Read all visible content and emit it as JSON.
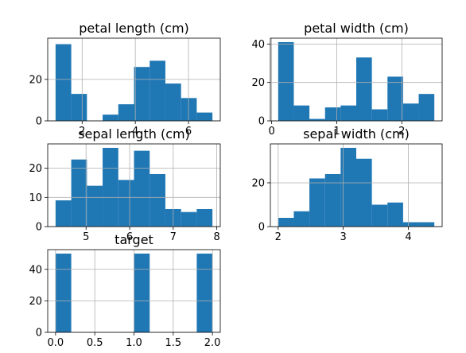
{
  "bar_color": "#1f77b4",
  "grid_color": "#b0b0b0",
  "chart_data": [
    {
      "type": "bar",
      "title": "petal length (cm)",
      "xlim": [
        0.705,
        7.195
      ],
      "ylim": [
        0,
        39.9
      ],
      "grid": true,
      "bins": [
        [
          1.0,
          1.59,
          37
        ],
        [
          1.59,
          2.18,
          13
        ],
        [
          2.18,
          2.77,
          0
        ],
        [
          2.77,
          3.36,
          3
        ],
        [
          3.36,
          3.95,
          8
        ],
        [
          3.95,
          4.54,
          26
        ],
        [
          4.54,
          5.13,
          29
        ],
        [
          5.13,
          5.72,
          18
        ],
        [
          5.72,
          6.31,
          11
        ],
        [
          6.31,
          6.9,
          4
        ]
      ],
      "xticks": [
        {
          "value": 2,
          "label": "2"
        },
        {
          "value": 4,
          "label": "4"
        },
        {
          "value": 6,
          "label": "6"
        }
      ],
      "yticks": [
        {
          "value": 0,
          "label": "0"
        },
        {
          "value": 20,
          "label": "20"
        }
      ]
    },
    {
      "type": "bar",
      "title": "petal width (cm)",
      "xlim": [
        -0.02,
        2.62
      ],
      "ylim": [
        0,
        43.05
      ],
      "grid": true,
      "bins": [
        [
          0.1,
          0.34,
          41
        ],
        [
          0.34,
          0.58,
          8
        ],
        [
          0.58,
          0.82,
          1
        ],
        [
          0.82,
          1.06,
          7
        ],
        [
          1.06,
          1.3,
          8
        ],
        [
          1.3,
          1.54,
          33
        ],
        [
          1.54,
          1.78,
          6
        ],
        [
          1.78,
          2.02,
          23
        ],
        [
          2.02,
          2.26,
          9
        ],
        [
          2.26,
          2.5,
          14
        ]
      ],
      "xticks": [
        {
          "value": 0,
          "label": "0"
        },
        {
          "value": 1,
          "label": "1"
        },
        {
          "value": 2,
          "label": "2"
        }
      ],
      "yticks": [
        {
          "value": 0,
          "label": "0"
        },
        {
          "value": 20,
          "label": "20"
        },
        {
          "value": 40,
          "label": "40"
        }
      ]
    },
    {
      "type": "bar",
      "title": "sepal length (cm)",
      "xlim": [
        4.12,
        8.08
      ],
      "ylim": [
        0,
        28.35
      ],
      "grid": true,
      "bins": [
        [
          4.3,
          4.66,
          9
        ],
        [
          4.66,
          5.02,
          23
        ],
        [
          5.02,
          5.38,
          14
        ],
        [
          5.38,
          5.74,
          27
        ],
        [
          5.74,
          6.1,
          16
        ],
        [
          6.1,
          6.46,
          26
        ],
        [
          6.46,
          6.82,
          18
        ],
        [
          6.82,
          7.18,
          6
        ],
        [
          7.18,
          7.54,
          5
        ],
        [
          7.54,
          7.9,
          6
        ]
      ],
      "xticks": [
        {
          "value": 5,
          "label": "5"
        },
        {
          "value": 6,
          "label": "6"
        },
        {
          "value": 7,
          "label": "7"
        },
        {
          "value": 8,
          "label": "8"
        }
      ],
      "yticks": [
        {
          "value": 0,
          "label": "0"
        },
        {
          "value": 10,
          "label": "10"
        },
        {
          "value": 20,
          "label": "20"
        }
      ]
    },
    {
      "type": "bar",
      "title": "sepal width (cm)",
      "xlim": [
        1.88,
        4.52
      ],
      "ylim": [
        0,
        37.8
      ],
      "grid": true,
      "bins": [
        [
          2.0,
          2.24,
          4
        ],
        [
          2.24,
          2.48,
          7
        ],
        [
          2.48,
          2.72,
          22
        ],
        [
          2.72,
          2.96,
          24
        ],
        [
          2.96,
          3.2,
          36
        ],
        [
          3.2,
          3.44,
          31
        ],
        [
          3.44,
          3.68,
          10
        ],
        [
          3.68,
          3.92,
          11
        ],
        [
          3.92,
          4.16,
          2
        ],
        [
          4.16,
          4.4,
          2
        ]
      ],
      "xticks": [
        {
          "value": 2,
          "label": "2"
        },
        {
          "value": 3,
          "label": "3"
        },
        {
          "value": 4,
          "label": "4"
        }
      ],
      "yticks": [
        {
          "value": 0,
          "label": "0"
        },
        {
          "value": 20,
          "label": "20"
        }
      ]
    },
    {
      "type": "bar",
      "title": "target",
      "xlim": [
        -0.1,
        2.1
      ],
      "ylim": [
        0,
        52.5
      ],
      "grid": true,
      "bins": [
        [
          0.0,
          0.2,
          50
        ],
        [
          0.2,
          0.4,
          0
        ],
        [
          0.4,
          0.6,
          0
        ],
        [
          0.6,
          0.8,
          0
        ],
        [
          0.8,
          1.0,
          0
        ],
        [
          1.0,
          1.2,
          50
        ],
        [
          1.2,
          1.4,
          0
        ],
        [
          1.4,
          1.6,
          0
        ],
        [
          1.6,
          1.8,
          0
        ],
        [
          1.8,
          2.0,
          50
        ]
      ],
      "xticks": [
        {
          "value": 0.0,
          "label": "0.0"
        },
        {
          "value": 0.5,
          "label": "0.5"
        },
        {
          "value": 1.0,
          "label": "1.0"
        },
        {
          "value": 1.5,
          "label": "1.5"
        },
        {
          "value": 2.0,
          "label": "2.0"
        }
      ],
      "yticks": [
        {
          "value": 0,
          "label": "0"
        },
        {
          "value": 20,
          "label": "20"
        },
        {
          "value": 40,
          "label": "40"
        }
      ]
    }
  ]
}
